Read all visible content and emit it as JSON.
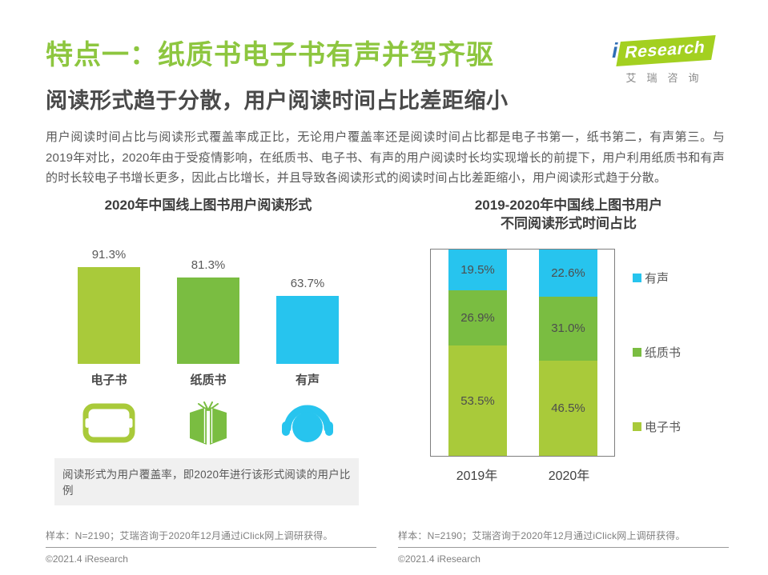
{
  "header": {
    "title": "特点一：纸质书电子书有声并驾齐驱",
    "subtitle": "阅读形式趋于分散，用户阅读时间占比差距缩小",
    "logo": {
      "i": "i",
      "rest": "Research",
      "cn": "艾瑞咨询"
    }
  },
  "body_text": "用户阅读时间占比与阅读形式覆盖率成正比，无论用户覆盖率还是阅读时间占比都是电子书第一，纸书第二，有声第三。与2019年对比，2020年由于受疫情影响，在纸质书、电子书、有声的用户阅读时长均实现增长的前提下，用户利用纸质书和有声的时长较电子书增长更多，因此占比增长，并且导致各阅读形式的阅读时间占比差距缩小，用户阅读形式趋于分散。",
  "colors": {
    "title_green": "#8dc63f",
    "ebook_lime": "#a9ca3a",
    "paper_green": "#7abd41",
    "audio_cyan": "#27c4ee"
  },
  "chart_data": [
    {
      "type": "bar",
      "title": "2020年中国线上图书用户阅读形式",
      "categories": [
        "电子书",
        "纸质书",
        "有声"
      ],
      "values": [
        91.3,
        81.3,
        63.7
      ],
      "value_labels": [
        "91.3%",
        "81.3%",
        "63.7%"
      ],
      "colors": [
        "#a9ca3a",
        "#7abd41",
        "#27c4ee"
      ],
      "icons": [
        "ereader-icon",
        "open-book-icon",
        "headphones-icon"
      ],
      "unit": "%",
      "ylim": [
        0,
        100
      ],
      "grid": false,
      "legend_position": "none"
    },
    {
      "type": "bar",
      "stacked": true,
      "title_line1": "2019-2020年中国线上图书用户",
      "title_line2": "不同阅读形式时间占比",
      "categories": [
        "2019年",
        "2020年"
      ],
      "series": [
        {
          "name": "有声",
          "color": "#27c4ee",
          "values": [
            19.5,
            22.6
          ]
        },
        {
          "name": "纸质书",
          "color": "#7abd41",
          "values": [
            26.9,
            31.0
          ]
        },
        {
          "name": "电子书",
          "color": "#a9ca3a",
          "values": [
            53.5,
            46.5
          ]
        }
      ],
      "value_suffix": "%",
      "ylim": [
        0,
        100
      ],
      "grid": false,
      "legend_position": "right"
    }
  ],
  "note": "阅读形式为用户覆盖率，即2020年进行该形式阅读的用户比例",
  "footer": {
    "left": {
      "source": "样本：N=2190；艾瑞咨询于2020年12月通过iClick网上调研获得。",
      "copyright": "©2021.4 iResearch"
    },
    "right": {
      "source": "样本：N=2190；艾瑞咨询于2020年12月通过iClick网上调研获得。",
      "copyright": "©2021.4 iResearch"
    }
  }
}
